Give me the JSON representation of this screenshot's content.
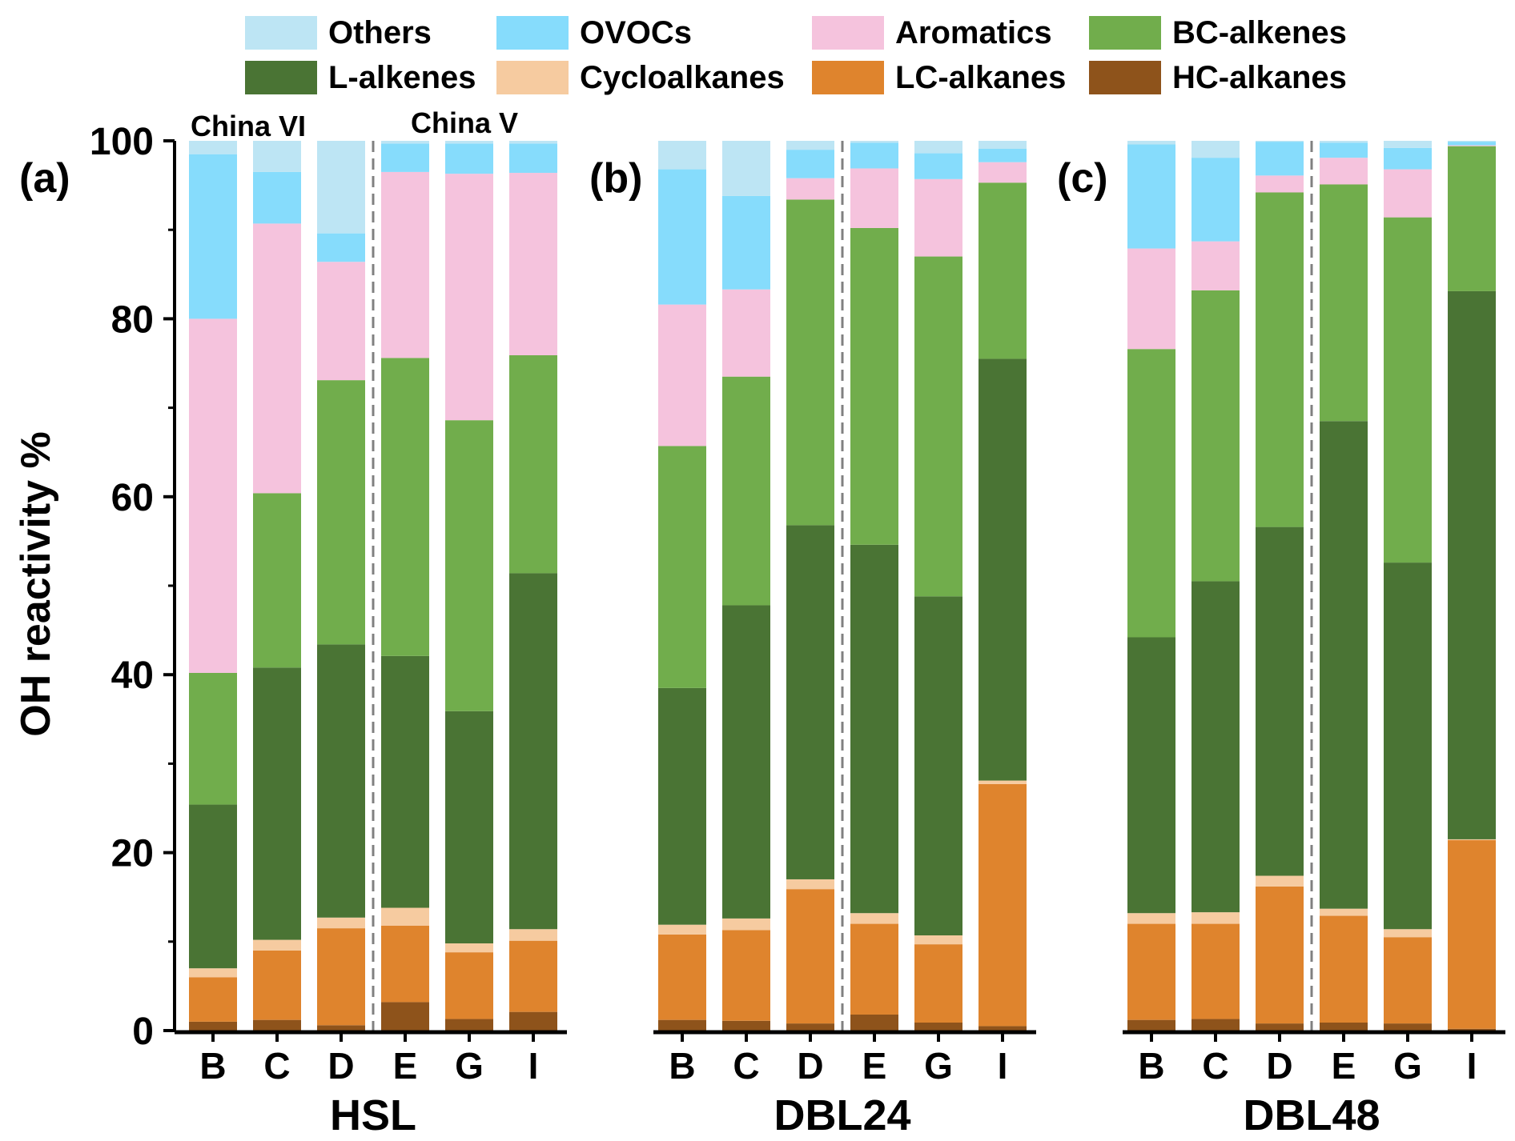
{
  "chart_data": {
    "type": "bar",
    "stacked": true,
    "ylabel": "OH reactivity %",
    "ylim": [
      0,
      100
    ],
    "yticks": [
      "0",
      "20",
      "40",
      "60",
      "80",
      "100"
    ],
    "categories": [
      "B",
      "C",
      "D",
      "E",
      "G",
      "I"
    ],
    "legend": {
      "position": "top",
      "entries": [
        {
          "name": "Others",
          "color": "#bde5f4"
        },
        {
          "name": "OVOCs",
          "color": "#86dcfc"
        },
        {
          "name": "Aromatics",
          "color": "#f5c3dd"
        },
        {
          "name": "BC-alkenes",
          "color": "#71ad4c"
        },
        {
          "name": "L-alkenes",
          "color": "#4a7434"
        },
        {
          "name": "Cycloalkanes",
          "color": "#f6cba0"
        },
        {
          "name": "LC-alkanes",
          "color": "#df842d"
        },
        {
          "name": "HC-alkanes",
          "color": "#8e531b"
        }
      ]
    },
    "stack_order": [
      "HC-alkanes",
      "LC-alkanes",
      "Cycloalkanes",
      "L-alkenes",
      "BC-alkenes",
      "Aromatics",
      "OVOCs",
      "Others"
    ],
    "group_labels": [
      "China VI",
      "China V"
    ],
    "panels": [
      {
        "tag": "(a)",
        "xlabel": "HSL",
        "bars": [
          [
            1.0,
            5.0,
            1.0,
            18.4,
            14.8,
            39.8,
            18.5,
            1.5
          ],
          [
            1.2,
            7.8,
            1.2,
            30.6,
            19.6,
            30.3,
            5.8,
            3.5
          ],
          [
            0.6,
            10.9,
            1.2,
            30.7,
            29.7,
            13.3,
            3.2,
            10.4
          ],
          [
            3.2,
            8.6,
            2.0,
            28.3,
            33.5,
            20.9,
            3.2,
            0.3
          ],
          [
            1.3,
            7.5,
            1.0,
            26.1,
            32.7,
            27.7,
            3.4,
            0.3
          ],
          [
            2.1,
            8.0,
            1.3,
            40.0,
            24.5,
            20.5,
            3.3,
            0.3
          ]
        ]
      },
      {
        "tag": "(b)",
        "xlabel": "DBL24",
        "bars": [
          [
            1.2,
            9.6,
            1.1,
            26.6,
            27.2,
            15.9,
            15.2,
            3.2
          ],
          [
            1.1,
            10.2,
            1.3,
            35.2,
            25.7,
            9.8,
            10.5,
            6.2
          ],
          [
            0.8,
            15.1,
            1.1,
            39.8,
            36.6,
            2.4,
            3.2,
            1.0
          ],
          [
            1.8,
            10.2,
            1.2,
            41.4,
            35.6,
            6.7,
            2.9,
            0.2
          ],
          [
            0.9,
            8.8,
            1.0,
            38.1,
            38.2,
            8.7,
            2.9,
            1.4
          ],
          [
            0.5,
            27.2,
            0.4,
            47.4,
            19.8,
            2.3,
            1.5,
            0.9
          ]
        ]
      },
      {
        "tag": "(c)",
        "xlabel": "DBL48",
        "bars": [
          [
            1.2,
            10.8,
            1.2,
            31.0,
            32.4,
            11.3,
            11.7,
            0.4
          ],
          [
            1.3,
            10.7,
            1.3,
            37.2,
            32.7,
            5.5,
            9.4,
            1.9
          ],
          [
            0.8,
            15.4,
            1.2,
            39.2,
            37.6,
            1.9,
            3.8,
            0.1
          ],
          [
            0.9,
            12.0,
            0.8,
            54.8,
            26.6,
            3.0,
            1.7,
            0.2
          ],
          [
            0.8,
            9.7,
            0.9,
            41.2,
            38.8,
            5.4,
            2.4,
            0.8
          ],
          [
            0.2,
            21.2,
            0.1,
            61.6,
            16.3,
            0.1,
            0.4,
            0.1
          ]
        ]
      }
    ]
  }
}
